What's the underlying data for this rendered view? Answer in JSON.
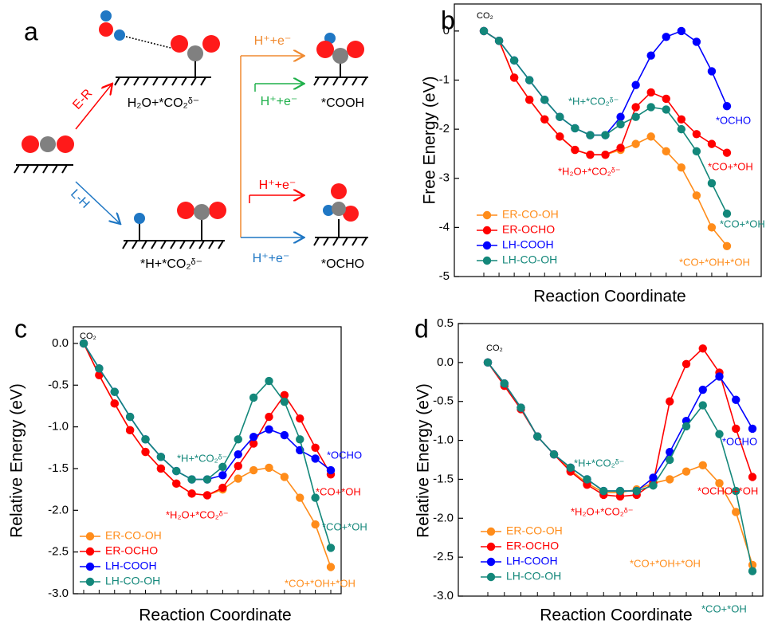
{
  "diagram": {
    "panel": "a",
    "route_er": "E-R",
    "route_lh": "L-H",
    "state_er": "H₂O+*CO₂ᵟ⁻",
    "state_lh": "*H+*CO₂ᵟ⁻",
    "step_orange": "H⁺+e⁻",
    "step_green": "H⁺+e⁻",
    "step_red": "H⁺+e⁻",
    "step_blue": "H⁺+e⁻",
    "product_top": "*COOH",
    "product_bottom": "*OCHO"
  },
  "chart_data": [
    {
      "type": "line",
      "panel": "b",
      "ylabel": "Free Energy (eV)",
      "xlabel": "Reaction Coordinate",
      "categories": [
        null,
        null,
        null,
        null,
        null,
        null,
        null,
        null,
        null,
        null,
        null,
        null,
        null,
        null,
        null,
        null,
        null
      ],
      "ylim": [
        -5,
        0.55
      ],
      "yticks": [
        0,
        -1,
        -2,
        -3,
        -4,
        -5
      ],
      "legend": "lower left",
      "series": [
        {
          "name": "ER-CO-OH",
          "color": "#ff8c1a",
          "values": [
            0,
            -0.2,
            -0.95,
            -1.4,
            -1.8,
            -2.15,
            -2.42,
            -2.52,
            -2.52,
            -2.42,
            -2.3,
            -2.15,
            -2.45,
            -2.78,
            -3.35,
            -4.0,
            -4.38
          ]
        },
        {
          "name": "ER-OCHO",
          "color": "#ff0000",
          "values": [
            0,
            -0.2,
            -0.95,
            -1.4,
            -1.8,
            -2.15,
            -2.42,
            -2.52,
            -2.52,
            -2.38,
            -1.55,
            -1.25,
            -1.38,
            -1.8,
            -2.1,
            -2.3,
            -2.48
          ]
        },
        {
          "name": "LH-COOH",
          "color": "#0000ff",
          "values": [
            0,
            -0.2,
            -0.6,
            -1.0,
            -1.4,
            -1.75,
            -1.98,
            -2.12,
            -2.12,
            -1.75,
            -1.1,
            -0.5,
            -0.12,
            0,
            -0.22,
            -0.82,
            -1.53
          ]
        },
        {
          "name": "LH-CO-OH",
          "color": "#13877a",
          "values": [
            0,
            -0.2,
            -0.6,
            -1.0,
            -1.4,
            -1.75,
            -1.98,
            -2.12,
            -2.12,
            -1.9,
            -1.75,
            -1.55,
            -1.6,
            -2.0,
            -2.45,
            -3.1,
            -3.72
          ]
        }
      ],
      "annotations": [
        {
          "text": "CO₂",
          "color": "#000000"
        },
        {
          "text": "*H+*CO₂ᵟ⁻",
          "color": "#13877a"
        },
        {
          "text": "*OCHO",
          "color": "#0000ff"
        },
        {
          "text": "*H₂O+*CO₂ᵟ⁻",
          "color": "#ff0000"
        },
        {
          "text": "*CO+*OH",
          "color": "#ff0000"
        },
        {
          "text": "*CO+*OH",
          "color": "#13877a"
        },
        {
          "text": "*CO+*OH+*OH",
          "color": "#ff8c1a"
        }
      ]
    },
    {
      "type": "line",
      "panel": "c",
      "ylabel": "Relative Energy (eV)",
      "xlabel": "Reaction Coordinate",
      "categories": [
        null,
        null,
        null,
        null,
        null,
        null,
        null,
        null,
        null,
        null,
        null,
        null,
        null,
        null,
        null,
        null,
        null
      ],
      "ylim": [
        -3,
        0.2
      ],
      "yticks": [
        {
          "value": 0,
          "label": "0.0"
        },
        -0.5,
        {
          "value": -1,
          "label": "-1.0"
        },
        -1.5,
        {
          "value": -2,
          "label": "-2.0"
        },
        -2.5,
        {
          "value": -3,
          "label": "-3.0"
        }
      ],
      "legend": "lower left",
      "series": [
        {
          "name": "ER-CO-OH",
          "color": "#ff8c1a",
          "values": [
            0,
            -0.38,
            -0.72,
            -1.04,
            -1.3,
            -1.5,
            -1.68,
            -1.8,
            -1.82,
            -1.75,
            -1.62,
            -1.52,
            -1.49,
            -1.6,
            -1.85,
            -2.17,
            -2.68
          ]
        },
        {
          "name": "ER-OCHO",
          "color": "#ff0000",
          "values": [
            0,
            -0.38,
            -0.72,
            -1.04,
            -1.3,
            -1.5,
            -1.68,
            -1.8,
            -1.82,
            -1.73,
            -1.47,
            -1.2,
            -0.88,
            -0.62,
            -0.9,
            -1.25,
            -1.57
          ]
        },
        {
          "name": "LH-COOH",
          "color": "#0000ff",
          "values": [
            0,
            -0.3,
            -0.58,
            -0.88,
            -1.15,
            -1.36,
            -1.53,
            -1.63,
            -1.63,
            -1.58,
            -1.33,
            -1.12,
            -1.03,
            -1.1,
            -1.28,
            -1.38,
            -1.52
          ]
        },
        {
          "name": "LH-CO-OH",
          "color": "#13877a",
          "values": [
            0,
            -0.3,
            -0.58,
            -0.88,
            -1.15,
            -1.36,
            -1.53,
            -1.63,
            -1.63,
            -1.48,
            -1.15,
            -0.65,
            -0.45,
            -0.7,
            -1.15,
            -1.85,
            -2.45
          ]
        }
      ],
      "annotations": [
        {
          "text": "CO₂",
          "color": "#000000"
        },
        {
          "text": "*H+*CO₂ᵟ⁻",
          "color": "#13877a"
        },
        {
          "text": "*OCHO",
          "color": "#0000ff"
        },
        {
          "text": "*CO+*OH",
          "color": "#ff0000"
        },
        {
          "text": "*H₂O+*CO₂ᵟ⁻",
          "color": "#ff0000"
        },
        {
          "text": "*CO+*OH",
          "color": "#13877a"
        },
        {
          "text": "*CO+*OH+*OH",
          "color": "#ff8c1a"
        }
      ]
    },
    {
      "type": "line",
      "panel": "d",
      "ylabel": "Relative Energy (eV)",
      "xlabel": "Reaction Coordinate",
      "categories": [
        null,
        null,
        null,
        null,
        null,
        null,
        null,
        null,
        null,
        null,
        null,
        null,
        null,
        null,
        null,
        null,
        null
      ],
      "ylim": [
        -3,
        0.5
      ],
      "yticks": [
        0.5,
        {
          "value": 0,
          "label": "0.0"
        },
        -0.5,
        {
          "value": -1,
          "label": "-1.0"
        },
        -1.5,
        {
          "value": -2,
          "label": "-2.0"
        },
        -2.5,
        {
          "value": -3,
          "label": "-3.0"
        }
      ],
      "legend": "lower left",
      "series": [
        {
          "name": "ER-CO-OH",
          "color": "#ff8c1a",
          "values": [
            0,
            -0.27,
            -0.58,
            -0.95,
            -1.18,
            -1.38,
            -1.55,
            -1.67,
            -1.67,
            -1.63,
            -1.55,
            -1.5,
            -1.4,
            -1.32,
            -1.55,
            -1.92,
            -2.6
          ]
        },
        {
          "name": "ER-OCHO",
          "color": "#ff0000",
          "values": [
            0,
            -0.3,
            -0.6,
            -0.95,
            -1.18,
            -1.4,
            -1.57,
            -1.7,
            -1.72,
            -1.7,
            -1.55,
            -0.5,
            -0.02,
            0.18,
            -0.13,
            -0.85,
            -1.47
          ]
        },
        {
          "name": "LH-COOH",
          "color": "#0000ff",
          "values": [
            0,
            -0.27,
            -0.58,
            -0.95,
            -1.18,
            -1.35,
            -1.5,
            -1.65,
            -1.65,
            -1.65,
            -1.48,
            -1.15,
            -0.75,
            -0.35,
            -0.18,
            -0.48,
            -0.85
          ]
        },
        {
          "name": "LH-CO-OH",
          "color": "#13877a",
          "values": [
            0,
            -0.27,
            -0.58,
            -0.95,
            -1.18,
            -1.35,
            -1.5,
            -1.65,
            -1.65,
            -1.65,
            -1.58,
            -1.25,
            -0.82,
            -0.55,
            -0.92,
            -1.65,
            -2.68
          ]
        }
      ],
      "annotations": [
        {
          "text": "CO₂",
          "color": "#000000"
        },
        {
          "text": "*H+*CO₂ᵟ⁻",
          "color": "#13877a"
        },
        {
          "text": "*OCHO",
          "color": "#0000ff"
        },
        {
          "text": "*OCHO+*OH",
          "color": "#ff0000"
        },
        {
          "text": "*H₂O+*CO₂ᵟ⁻",
          "color": "#ff0000"
        },
        {
          "text": "*CO+*OH+*OH",
          "color": "#ff8c1a"
        },
        {
          "text": "*CO+*OH",
          "color": "#13877a"
        }
      ]
    }
  ]
}
